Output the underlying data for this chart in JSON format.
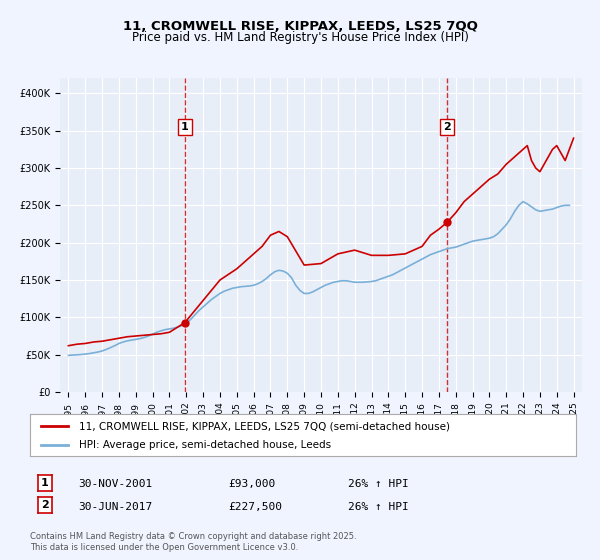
{
  "title_line1": "11, CROMWELL RISE, KIPPAX, LEEDS, LS25 7QQ",
  "title_line2": "Price paid vs. HM Land Registry's House Price Index (HPI)",
  "background_color": "#f0f4ff",
  "plot_bg_color": "#e8eef8",
  "grid_color": "#ffffff",
  "line1_color": "#cc0000",
  "line2_color": "#7ab0d8",
  "legend1_label": "11, CROMWELL RISE, KIPPAX, LEEDS, LS25 7QQ (semi-detached house)",
  "legend2_label": "HPI: Average price, semi-detached house, Leeds",
  "marker1_date_x": 2001.917,
  "marker1_y": 93000,
  "marker2_date_x": 2017.5,
  "marker2_y": 227500,
  "vline1_x": 2001.917,
  "vline2_x": 2017.5,
  "ylim": [
    0,
    420000
  ],
  "xlim": [
    1994.5,
    2025.5
  ],
  "yticks": [
    0,
    50000,
    100000,
    150000,
    200000,
    250000,
    300000,
    350000,
    400000
  ],
  "ytick_labels": [
    "£0",
    "£50K",
    "£100K",
    "£150K",
    "£200K",
    "£250K",
    "£300K",
    "£350K",
    "£400K"
  ],
  "xticks": [
    1995,
    1996,
    1997,
    1998,
    1999,
    2000,
    2001,
    2002,
    2003,
    2004,
    2005,
    2006,
    2007,
    2008,
    2009,
    2010,
    2011,
    2012,
    2013,
    2014,
    2015,
    2016,
    2017,
    2018,
    2019,
    2020,
    2021,
    2022,
    2023,
    2024,
    2025
  ],
  "annotation1_label": "1",
  "annotation2_label": "2",
  "note1_num": "1",
  "note1_date": "30-NOV-2001",
  "note1_price": "£93,000",
  "note1_hpi": "26% ↑ HPI",
  "note2_num": "2",
  "note2_date": "30-JUN-2017",
  "note2_price": "£227,500",
  "note2_hpi": "26% ↑ HPI",
  "footer": "Contains HM Land Registry data © Crown copyright and database right 2025.\nThis data is licensed under the Open Government Licence v3.0.",
  "hpi_data_x": [
    1995.0,
    1995.25,
    1995.5,
    1995.75,
    1996.0,
    1996.25,
    1996.5,
    1996.75,
    1997.0,
    1997.25,
    1997.5,
    1997.75,
    1998.0,
    1998.25,
    1998.5,
    1998.75,
    1999.0,
    1999.25,
    1999.5,
    1999.75,
    2000.0,
    2000.25,
    2000.5,
    2000.75,
    2001.0,
    2001.25,
    2001.5,
    2001.75,
    2002.0,
    2002.25,
    2002.5,
    2002.75,
    2003.0,
    2003.25,
    2003.5,
    2003.75,
    2004.0,
    2004.25,
    2004.5,
    2004.75,
    2005.0,
    2005.25,
    2005.5,
    2005.75,
    2006.0,
    2006.25,
    2006.5,
    2006.75,
    2007.0,
    2007.25,
    2007.5,
    2007.75,
    2008.0,
    2008.25,
    2008.5,
    2008.75,
    2009.0,
    2009.25,
    2009.5,
    2009.75,
    2010.0,
    2010.25,
    2010.5,
    2010.75,
    2011.0,
    2011.25,
    2011.5,
    2011.75,
    2012.0,
    2012.25,
    2012.5,
    2012.75,
    2013.0,
    2013.25,
    2013.5,
    2013.75,
    2014.0,
    2014.25,
    2014.5,
    2014.75,
    2015.0,
    2015.25,
    2015.5,
    2015.75,
    2016.0,
    2016.25,
    2016.5,
    2016.75,
    2017.0,
    2017.25,
    2017.5,
    2017.75,
    2018.0,
    2018.25,
    2018.5,
    2018.75,
    2019.0,
    2019.25,
    2019.5,
    2019.75,
    2020.0,
    2020.25,
    2020.5,
    2020.75,
    2021.0,
    2021.25,
    2021.5,
    2021.75,
    2022.0,
    2022.25,
    2022.5,
    2022.75,
    2023.0,
    2023.25,
    2023.5,
    2023.75,
    2024.0,
    2024.25,
    2024.5,
    2024.75
  ],
  "hpi_data_y": [
    49000,
    49500,
    49800,
    50200,
    50800,
    51500,
    52500,
    53500,
    55000,
    57000,
    59500,
    62000,
    65000,
    67000,
    68500,
    69500,
    70500,
    71500,
    73000,
    75000,
    77500,
    80000,
    82000,
    83500,
    84500,
    85500,
    87000,
    89000,
    92000,
    97000,
    103000,
    109000,
    114000,
    119000,
    124000,
    128000,
    132000,
    135000,
    137000,
    139000,
    140000,
    141000,
    141500,
    142000,
    143000,
    145000,
    148000,
    152000,
    157000,
    161000,
    163000,
    162000,
    159000,
    153000,
    143000,
    136000,
    132000,
    132000,
    134000,
    137000,
    140000,
    143000,
    145000,
    147000,
    148000,
    149000,
    149000,
    148000,
    147000,
    147000,
    147000,
    147500,
    148000,
    149000,
    151000,
    153000,
    155000,
    157000,
    160000,
    163000,
    166000,
    169000,
    172000,
    175000,
    178000,
    181000,
    184000,
    186000,
    188000,
    190000,
    192000,
    193000,
    194000,
    196000,
    198000,
    200000,
    202000,
    203000,
    204000,
    205000,
    206000,
    208000,
    212000,
    218000,
    224000,
    232000,
    242000,
    250000,
    255000,
    252000,
    248000,
    244000,
    242000,
    243000,
    244000,
    245000,
    247000,
    249000,
    250000,
    250000
  ],
  "property_data_x": [
    1995.0,
    1995.5,
    1996.0,
    1996.5,
    1997.0,
    1997.5,
    1998.0,
    1998.5,
    1999.0,
    1999.5,
    2000.0,
    2000.5,
    2001.0,
    2001.917,
    2004.0,
    2005.0,
    2006.0,
    2006.5,
    2007.0,
    2007.5,
    2008.0,
    2009.0,
    2010.0,
    2011.0,
    2012.0,
    2013.0,
    2014.0,
    2015.0,
    2016.0,
    2016.5,
    2017.0,
    2017.5,
    2018.0,
    2018.5,
    2019.0,
    2019.5,
    2020.0,
    2020.5,
    2021.0,
    2021.5,
    2022.0,
    2022.25,
    2022.5,
    2022.75,
    2023.0,
    2023.25,
    2023.5,
    2023.75,
    2024.0,
    2024.5,
    2025.0
  ],
  "property_data_y": [
    62000,
    64000,
    65000,
    67000,
    68000,
    70000,
    72000,
    74000,
    75000,
    76000,
    77000,
    78000,
    80000,
    93000,
    150000,
    165000,
    185000,
    195000,
    210000,
    215000,
    208000,
    170000,
    172000,
    185000,
    190000,
    183000,
    183000,
    185000,
    195000,
    210000,
    218000,
    227500,
    240000,
    255000,
    265000,
    275000,
    285000,
    292000,
    305000,
    315000,
    325000,
    330000,
    310000,
    300000,
    295000,
    305000,
    315000,
    325000,
    330000,
    310000,
    340000
  ]
}
